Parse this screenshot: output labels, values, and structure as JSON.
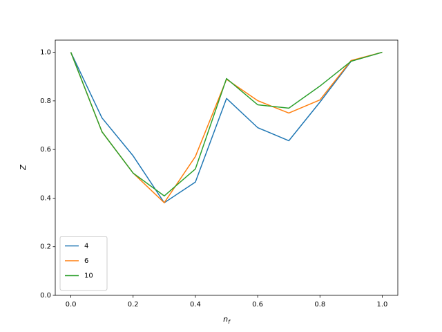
{
  "chart_data": {
    "type": "line",
    "x_label": {
      "text": "n",
      "subscript": "f"
    },
    "y_label": "Z",
    "x": [
      0.0,
      0.1,
      0.2,
      0.3,
      0.4,
      0.5,
      0.6,
      0.7,
      0.8,
      0.9,
      1.0
    ],
    "series": [
      {
        "name": "4",
        "color": "#1f77b4",
        "values": [
          1.0,
          0.73,
          0.574,
          0.381,
          0.466,
          0.81,
          0.69,
          0.636,
          0.795,
          0.963,
          1.0
        ]
      },
      {
        "name": "6",
        "color": "#ff7f0e",
        "values": [
          1.0,
          0.673,
          0.503,
          0.381,
          0.571,
          0.889,
          0.801,
          0.75,
          0.804,
          0.966,
          1.0
        ]
      },
      {
        "name": "10",
        "color": "#2ca02c",
        "values": [
          1.0,
          0.673,
          0.503,
          0.409,
          0.52,
          0.892,
          0.784,
          0.77,
          0.861,
          0.963,
          1.0
        ]
      }
    ],
    "xlim": [
      -0.05,
      1.05
    ],
    "ylim": [
      0,
      1.05
    ],
    "xticks": [
      {
        "value": 0,
        "label": "0.0"
      },
      {
        "value": 0.2,
        "label": "0.2"
      },
      {
        "value": 0.4,
        "label": "0.4"
      },
      {
        "value": 0.6,
        "label": "0.6"
      },
      {
        "value": 0.8,
        "label": "0.8"
      },
      {
        "value": 1,
        "label": "1.0"
      }
    ],
    "yticks": [
      {
        "value": 0,
        "label": "0.0"
      },
      {
        "value": 0.2,
        "label": "0.2"
      },
      {
        "value": 0.4,
        "label": "0.4"
      },
      {
        "value": 0.6,
        "label": "0.6"
      },
      {
        "value": 0.8,
        "label": "0.8"
      },
      {
        "value": 1,
        "label": "1.0"
      }
    ],
    "grid": false,
    "legend_position": "lower-left"
  }
}
